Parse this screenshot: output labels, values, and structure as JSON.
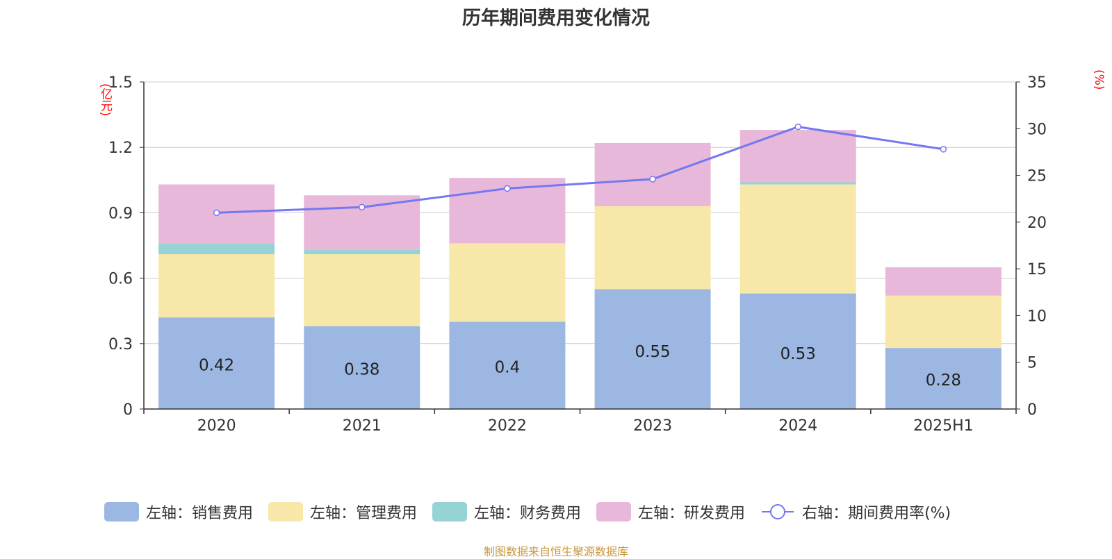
{
  "title": "历年期间费用变化情况",
  "unit_left": "(亿元)",
  "unit_right": "(%)",
  "source": "制图数据来自恒生聚源数据库",
  "colors": {
    "sales": "#9cb8e2",
    "admin": "#f7e7a8",
    "finance": "#96d3d4",
    "rnd": "#e8b8da",
    "rate": "#7478f0",
    "grid": "#cccccc",
    "axis": "#333333",
    "unit": "#ff0000"
  },
  "chart_data": {
    "type": "bar",
    "stacked": true,
    "title": "历年期间费用变化情况",
    "categories": [
      "2020",
      "2021",
      "2022",
      "2023",
      "2024",
      "2025H1"
    ],
    "y_left": {
      "label": "(亿元)",
      "ylim": [
        0,
        1.5
      ],
      "ticks": [
        "0",
        "0.3",
        "0.6",
        "0.9",
        "1.2",
        "1.5"
      ]
    },
    "y_right": {
      "label": "(%)",
      "ylim": [
        0,
        35
      ],
      "ticks": [
        "0",
        "5",
        "10",
        "15",
        "20",
        "25",
        "30",
        "35"
      ]
    },
    "grid": true,
    "legend_position": "bottom",
    "series": [
      {
        "name": "左轴：销售费用",
        "axis": "left",
        "values": [
          0.42,
          0.38,
          0.4,
          0.55,
          0.53,
          0.28
        ],
        "labels": [
          "0.42",
          "0.38",
          "0.4",
          "0.55",
          "0.53",
          "0.28"
        ]
      },
      {
        "name": "左轴：管理费用",
        "axis": "left",
        "values": [
          0.29,
          0.33,
          0.36,
          0.38,
          0.5,
          0.24
        ]
      },
      {
        "name": "左轴：财务费用",
        "axis": "left",
        "values": [
          0.05,
          0.02,
          0.0,
          0.0,
          0.01,
          0.0
        ]
      },
      {
        "name": "左轴：研发费用",
        "axis": "left",
        "values": [
          0.27,
          0.25,
          0.3,
          0.29,
          0.24,
          0.13
        ]
      },
      {
        "name": "右轴：期间费用率(%)",
        "axis": "right",
        "type": "line",
        "values": [
          21.0,
          21.6,
          23.6,
          24.6,
          30.2,
          27.8
        ]
      }
    ]
  }
}
